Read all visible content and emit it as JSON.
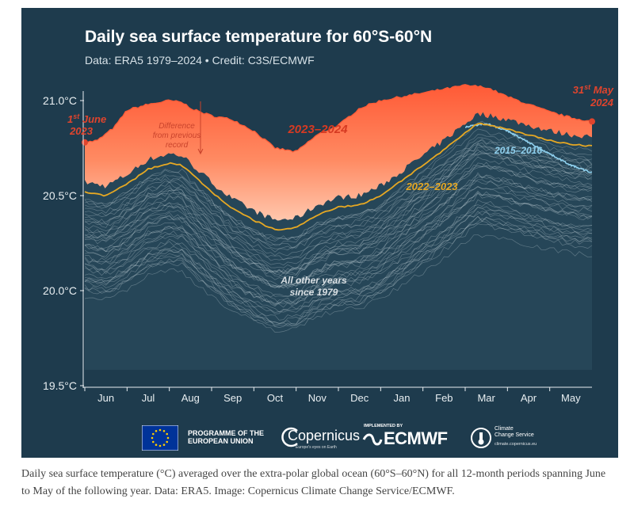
{
  "figure": {
    "title": "Daily sea surface temperature for 60°S-60°N",
    "subtitle": "Data: ERA5 1979–2024 • Credit: C3S/ECMWF"
  },
  "chart_data": {
    "type": "line",
    "title": "Daily sea surface temperature for 60°S-60°N",
    "subtitle": "Data: ERA5 1979–2024 • Credit: C3S/ECMWF",
    "ylim": [
      19.5,
      21.0
    ],
    "y_ticks": [
      "21.0°C",
      "20.5°C",
      "20.0°C",
      "19.5°C"
    ],
    "y_tick_values": [
      21.0,
      20.5,
      20.0,
      19.5
    ],
    "x_categories": [
      "Jun",
      "Jul",
      "Aug",
      "Sep",
      "Oct",
      "Nov",
      "Dec",
      "Jan",
      "Feb",
      "Mar",
      "Apr",
      "May"
    ],
    "grid": false,
    "series": [
      {
        "name": "2023–2024",
        "color": "#ff6a45",
        "x": [
          0,
          0.3,
          0.7,
          1.0,
          1.5,
          2.0,
          2.3,
          2.6,
          3.0,
          3.5,
          4.0,
          4.5,
          5.0,
          5.5,
          6.0,
          6.5,
          7.0,
          7.5,
          8.0,
          8.5,
          9.0,
          9.5,
          10.0,
          10.5,
          11.0,
          11.5,
          12.0
        ],
        "values": [
          20.78,
          20.79,
          20.86,
          20.95,
          20.98,
          21.0,
          20.99,
          20.95,
          20.92,
          20.9,
          20.84,
          20.75,
          20.73,
          20.82,
          20.87,
          20.96,
          21.0,
          21.02,
          21.04,
          21.06,
          21.08,
          21.07,
          21.02,
          20.98,
          20.94,
          20.91,
          20.89
        ]
      },
      {
        "name": "2022–2023",
        "color": "#e6a823",
        "x": [
          0,
          0.5,
          1.0,
          1.5,
          2.0,
          2.3,
          2.7,
          3.0,
          3.5,
          4.0,
          4.5,
          5.0,
          5.5,
          6.0,
          6.5,
          7.0,
          7.5,
          8.0,
          8.5,
          9.0,
          9.3,
          9.6,
          10.0,
          10.5,
          11.0,
          11.5,
          12.0
        ],
        "values": [
          20.52,
          20.5,
          20.56,
          20.64,
          20.67,
          20.66,
          20.58,
          20.52,
          20.43,
          20.37,
          20.32,
          20.33,
          20.4,
          20.44,
          20.45,
          20.5,
          20.58,
          20.66,
          20.74,
          20.83,
          20.88,
          20.87,
          20.85,
          20.82,
          20.79,
          20.77,
          20.76
        ]
      },
      {
        "name": "2015–2016",
        "color": "#8fd0ee",
        "x": [
          9.0,
          9.5,
          10.0,
          10.5,
          11.0,
          11.5,
          12.0
        ],
        "values": [
          20.86,
          20.88,
          20.84,
          20.78,
          20.72,
          20.66,
          20.62
        ]
      }
    ],
    "annotations": [
      "1st June 2023",
      "31st May 2024",
      "Difference from previous record",
      "2023–2024",
      "2022–2023",
      "2015–2016",
      "All other years since 1979"
    ]
  },
  "annotations": {
    "start_label_1": "1",
    "start_label_sup": "st",
    "start_label_2": " June",
    "start_label_year": "2023",
    "end_label_1": "31",
    "end_label_sup": "st",
    "end_label_2": " May",
    "end_label_year": "2024",
    "diff_line1": "Difference",
    "diff_line2": "from previous",
    "diff_line3": "record",
    "series_2324": "2023–2024",
    "series_2223": "2022–2023",
    "series_1516": "2015–2016",
    "others_line1": "All other years",
    "others_line2": "since 1979"
  },
  "logos": {
    "eu_line1": "PROGRAMME OF THE",
    "eu_line2": "EUROPEAN UNION",
    "copernicus": "Copernicus",
    "copernicus_tag": "Europe's eyes on Earth",
    "ecmwf_small": "IMPLEMENTED BY",
    "ecmwf": "ECMWF",
    "c3s_line1": "Climate",
    "c3s_line2": "Change Service",
    "c3s_url": "climate.copernicus.eu"
  },
  "colors": {
    "background": "#1e3b4d",
    "record_fill": "#ff6a45",
    "series_2223": "#e6a823",
    "series_1516": "#8fd0ee",
    "other_years": "#c7d3da"
  },
  "caption": "Daily sea surface temperature (°C) averaged over the extra-polar global ocean (60°S–60°N) for all 12-month periods spanning June to May of the following year. Data: ERA5. Image: Copernicus Climate Change Service/ECMWF."
}
